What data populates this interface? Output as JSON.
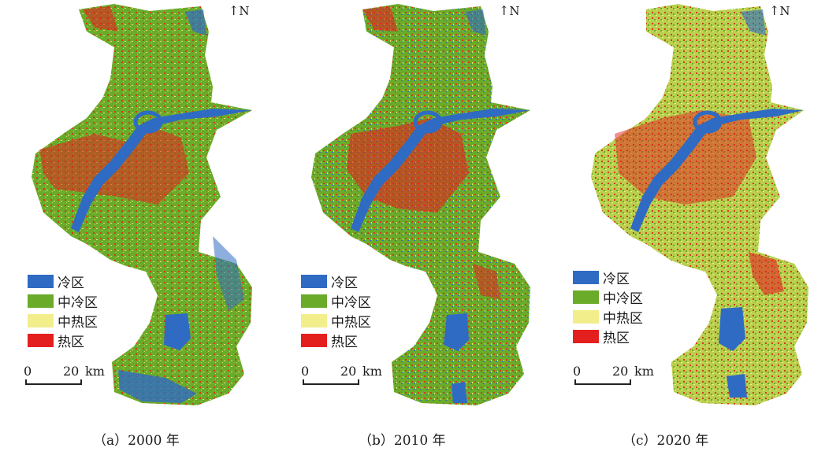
{
  "north_label": "N",
  "legend": [
    {
      "label": "冷区",
      "color": "#2f6bc3"
    },
    {
      "label": "中冷区",
      "color": "#6aab2a"
    },
    {
      "label": "中热区",
      "color": "#f2ee8c"
    },
    {
      "label": "热区",
      "color": "#e4201f"
    }
  ],
  "scale": {
    "zero": "0",
    "twenty": "20",
    "unit": "km"
  },
  "panels": [
    {
      "id": "a",
      "caption": "（a）2000 年"
    },
    {
      "id": "b",
      "caption": "（b）2010 年"
    },
    {
      "id": "c",
      "caption": "（c）2020 年"
    }
  ],
  "colors": {
    "background": "#ffffff",
    "water": "#2f6bc3",
    "green": "#6aab2a",
    "yellow": "#f2ee8c",
    "red": "#e4201f"
  }
}
